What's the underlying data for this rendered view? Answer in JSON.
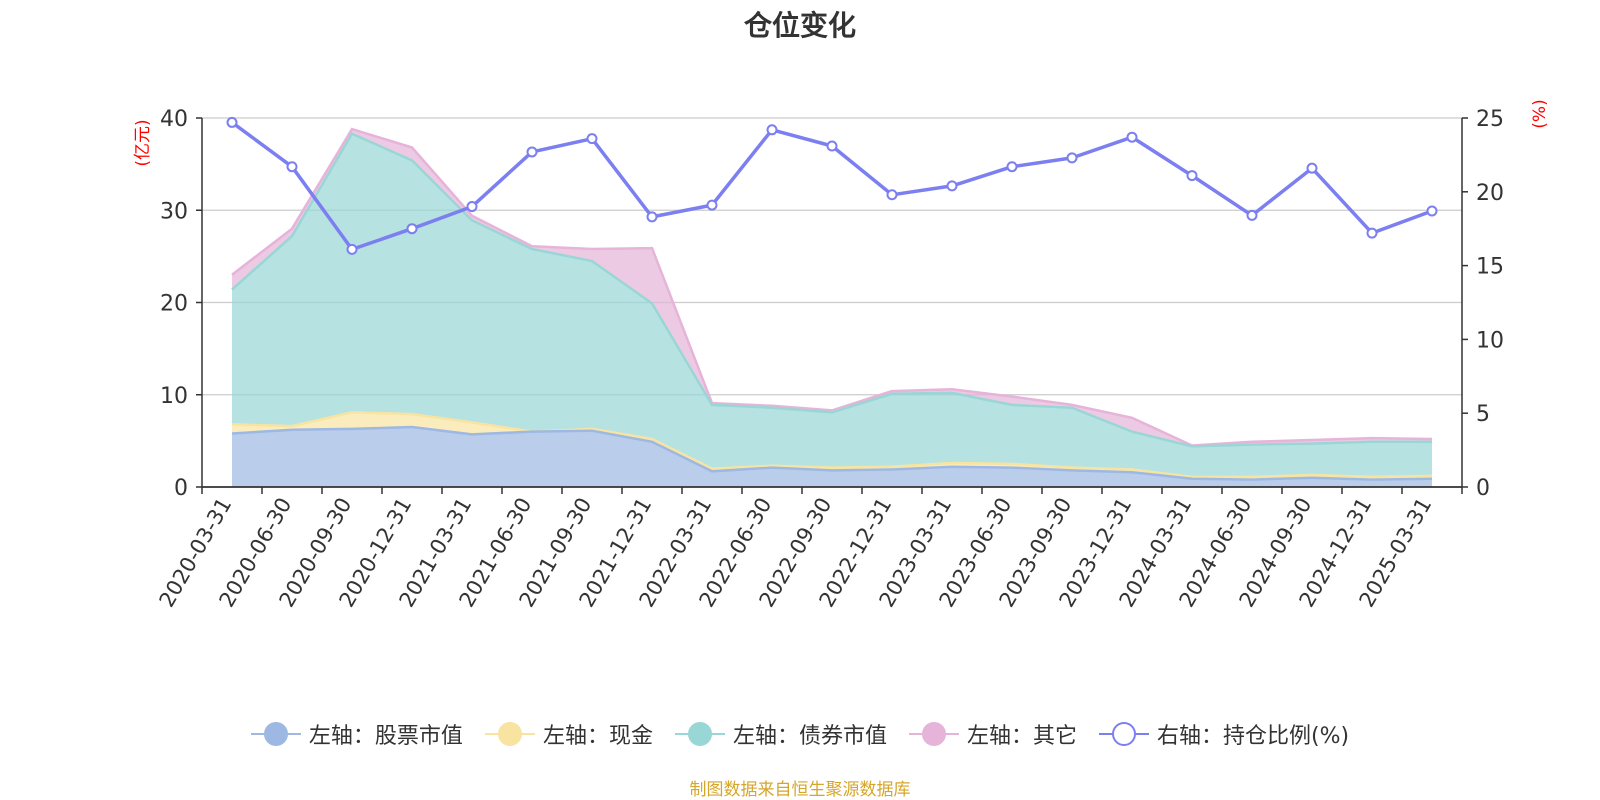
{
  "title": "仓位变化",
  "source_note": "制图数据来自恒生聚源数据库",
  "colors": {
    "stock": "#9db8e3",
    "cash": "#f8e4a0",
    "bond": "#99d6d6",
    "other": "#e6b3d9",
    "ratio": "#7b7ff0",
    "axis_unit": "#ff0000"
  },
  "chart_data": {
    "type": "area",
    "categories": [
      "2020-03-31",
      "2020-06-30",
      "2020-09-30",
      "2020-12-31",
      "2021-03-31",
      "2021-06-30",
      "2021-09-30",
      "2021-12-31",
      "2022-03-31",
      "2022-06-30",
      "2022-09-30",
      "2022-12-31",
      "2023-03-31",
      "2023-06-30",
      "2023-09-30",
      "2023-12-31",
      "2024-03-31",
      "2024-06-30",
      "2024-09-30",
      "2024-12-31",
      "2025-03-31"
    ],
    "left_axis": {
      "unit": "(亿元)",
      "min": 0,
      "max": 40,
      "ticks": [
        0,
        10,
        20,
        30,
        40
      ]
    },
    "right_axis": {
      "unit": "(%)",
      "min": 0,
      "max": 25,
      "ticks": [
        0,
        5,
        10,
        15,
        20,
        25
      ]
    },
    "grid": true,
    "legend_position": "bottom",
    "series": [
      {
        "name": "左轴：股票市值",
        "axis": "left",
        "type": "area",
        "color": "#9db8e3",
        "values": [
          5.8,
          6.2,
          6.3,
          6.5,
          5.7,
          6.0,
          6.1,
          4.9,
          1.7,
          2.1,
          1.8,
          1.9,
          2.2,
          2.1,
          1.8,
          1.6,
          0.9,
          0.8,
          1.0,
          0.8,
          0.9
        ]
      },
      {
        "name": "左轴：现金",
        "axis": "left",
        "type": "area",
        "color": "#f8e4a0",
        "values": [
          1.0,
          0.4,
          1.8,
          1.4,
          1.3,
          0.0,
          0.2,
          0.3,
          0.3,
          0.2,
          0.3,
          0.3,
          0.4,
          0.4,
          0.3,
          0.3,
          0.2,
          0.3,
          0.3,
          0.3,
          0.3
        ]
      },
      {
        "name": "左轴：债券市值",
        "axis": "left",
        "type": "area",
        "color": "#99d6d6",
        "values": [
          14.6,
          20.6,
          30.2,
          27.5,
          21.9,
          19.8,
          18.2,
          14.7,
          6.9,
          6.3,
          6.0,
          7.9,
          7.6,
          6.4,
          6.5,
          4.1,
          3.3,
          3.5,
          3.4,
          3.8,
          3.7
        ]
      },
      {
        "name": "左轴：其它",
        "axis": "left",
        "type": "area",
        "color": "#e6b3d9",
        "values": [
          1.6,
          0.8,
          0.5,
          1.4,
          0.5,
          0.3,
          1.3,
          6.0,
          0.2,
          0.2,
          0.2,
          0.3,
          0.4,
          0.9,
          0.3,
          1.5,
          0.1,
          0.3,
          0.4,
          0.4,
          0.3
        ]
      },
      {
        "name": "右轴：持仓比例(%)",
        "axis": "right",
        "type": "line",
        "color": "#7b7ff0",
        "values": [
          24.7,
          21.7,
          16.1,
          17.5,
          19.0,
          22.7,
          23.6,
          18.3,
          19.1,
          24.2,
          23.1,
          19.8,
          20.4,
          21.7,
          22.3,
          23.7,
          21.1,
          18.4,
          21.6,
          17.2,
          18.7
        ]
      }
    ]
  },
  "legend": [
    {
      "label": "左轴：股票市值",
      "style": "filled",
      "color": "#9db8e3"
    },
    {
      "label": "左轴：现金",
      "style": "filled",
      "color": "#f8e4a0"
    },
    {
      "label": "左轴：债券市值",
      "style": "filled",
      "color": "#99d6d6"
    },
    {
      "label": "左轴：其它",
      "style": "filled",
      "color": "#e6b3d9"
    },
    {
      "label": "右轴：持仓比例(%)",
      "style": "hollow",
      "color": "#7b7ff0"
    }
  ]
}
